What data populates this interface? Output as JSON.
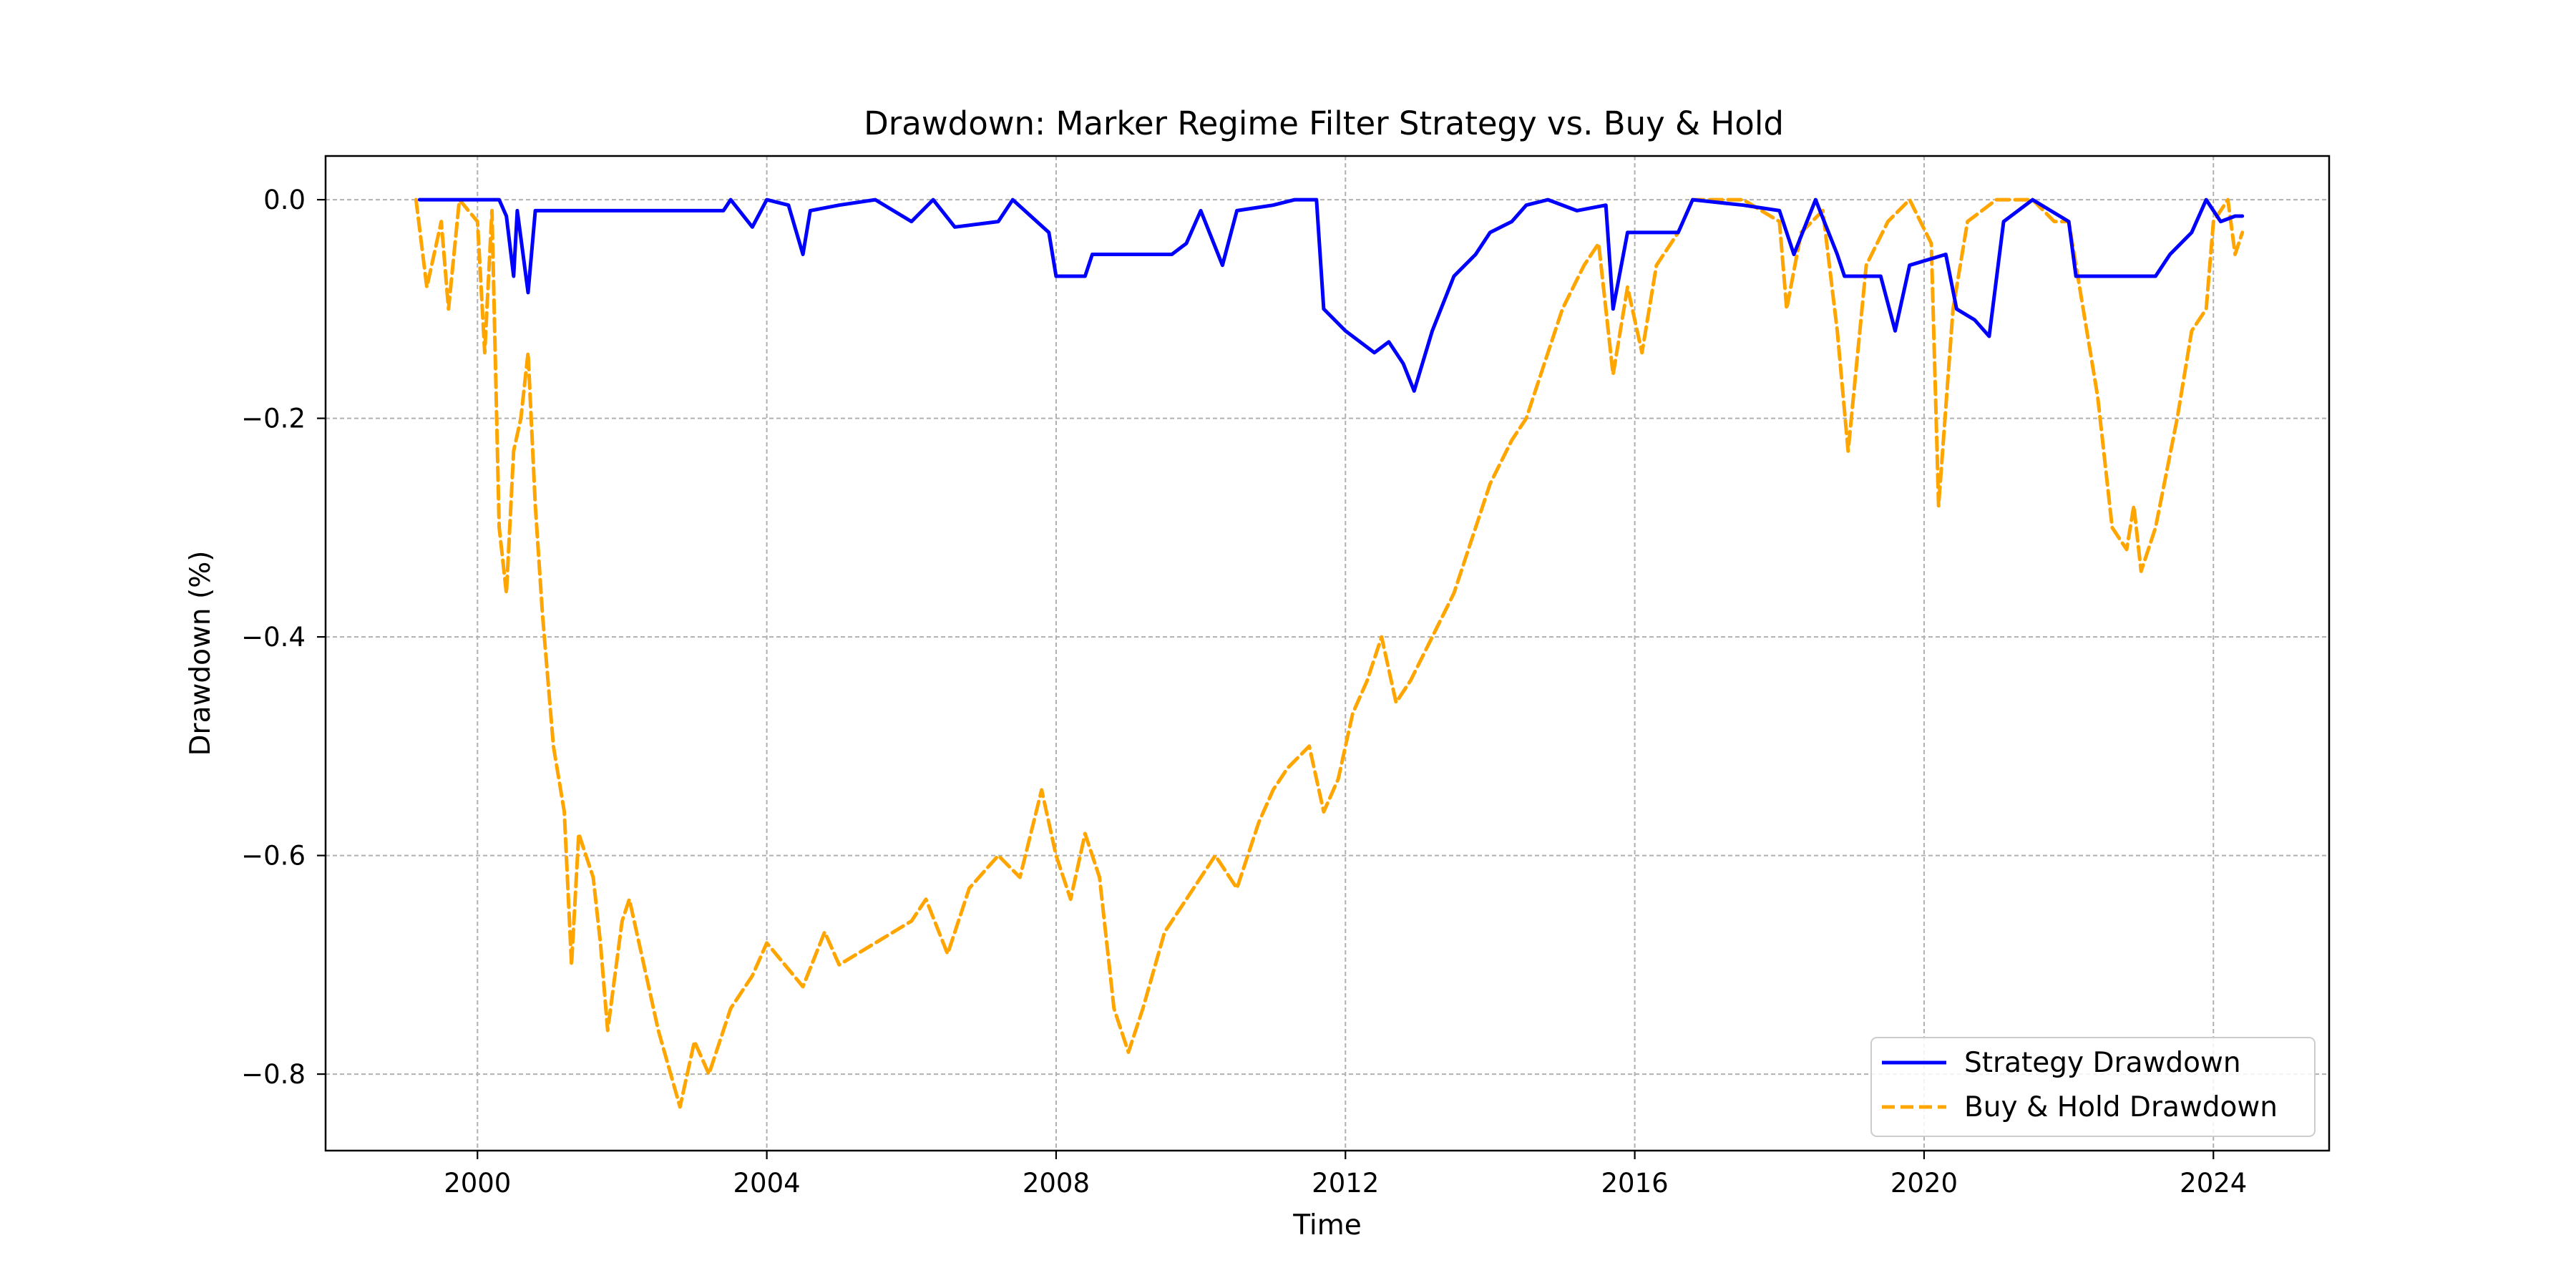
{
  "chart_data": {
    "type": "line",
    "title": "Drawdown: Marker Regime Filter Strategy vs. Buy & Hold",
    "xlabel": "Time",
    "ylabel": "Drawdown (%)",
    "xlim": [
      1997.9,
      2025.6
    ],
    "ylim": [
      -0.87,
      0.04
    ],
    "xticks": [
      2000,
      2004,
      2008,
      2012,
      2016,
      2020,
      2024
    ],
    "xtick_labels": [
      "2000",
      "2004",
      "2008",
      "2012",
      "2016",
      "2020",
      "2024"
    ],
    "yticks": [
      0.0,
      -0.2,
      -0.4,
      -0.6,
      -0.8
    ],
    "ytick_labels": [
      "0.0",
      "−0.2",
      "−0.4",
      "−0.6",
      "−0.8"
    ],
    "grid": true,
    "legend_position": "bottom-right",
    "series": [
      {
        "name": "Strategy Drawdown",
        "color": "#0000ff",
        "line_style": "solid",
        "points": [
          [
            1999.2,
            0.0
          ],
          [
            2000.3,
            0.0
          ],
          [
            2000.4,
            -0.015
          ],
          [
            2000.5,
            -0.07
          ],
          [
            2000.55,
            -0.01
          ],
          [
            2000.7,
            -0.085
          ],
          [
            2000.8,
            -0.01
          ],
          [
            2003.4,
            -0.01
          ],
          [
            2003.5,
            0.0
          ],
          [
            2003.8,
            -0.025
          ],
          [
            2004.0,
            0.0
          ],
          [
            2004.3,
            -0.005
          ],
          [
            2004.5,
            -0.05
          ],
          [
            2004.6,
            -0.01
          ],
          [
            2005.0,
            -0.005
          ],
          [
            2005.5,
            0.0
          ],
          [
            2006.0,
            -0.02
          ],
          [
            2006.3,
            0.0
          ],
          [
            2006.6,
            -0.025
          ],
          [
            2007.2,
            -0.02
          ],
          [
            2007.4,
            0.0
          ],
          [
            2007.9,
            -0.03
          ],
          [
            2008.0,
            -0.07
          ],
          [
            2008.4,
            -0.07
          ],
          [
            2008.5,
            -0.05
          ],
          [
            2009.6,
            -0.05
          ],
          [
            2009.8,
            -0.04
          ],
          [
            2010.0,
            -0.01
          ],
          [
            2010.3,
            -0.06
          ],
          [
            2010.5,
            -0.01
          ],
          [
            2011.0,
            -0.005
          ],
          [
            2011.3,
            0.0
          ],
          [
            2011.6,
            0.0
          ],
          [
            2011.7,
            -0.1
          ],
          [
            2012.0,
            -0.12
          ],
          [
            2012.4,
            -0.14
          ],
          [
            2012.6,
            -0.13
          ],
          [
            2012.8,
            -0.15
          ],
          [
            2012.95,
            -0.175
          ],
          [
            2013.2,
            -0.12
          ],
          [
            2013.5,
            -0.07
          ],
          [
            2013.8,
            -0.05
          ],
          [
            2014.0,
            -0.03
          ],
          [
            2014.3,
            -0.02
          ],
          [
            2014.5,
            -0.005
          ],
          [
            2014.8,
            0.0
          ],
          [
            2015.2,
            -0.01
          ],
          [
            2015.6,
            -0.005
          ],
          [
            2015.7,
            -0.1
          ],
          [
            2015.9,
            -0.03
          ],
          [
            2016.2,
            -0.03
          ],
          [
            2016.6,
            -0.03
          ],
          [
            2016.8,
            0.0
          ],
          [
            2017.5,
            -0.005
          ],
          [
            2018.0,
            -0.01
          ],
          [
            2018.2,
            -0.05
          ],
          [
            2018.5,
            0.0
          ],
          [
            2018.8,
            -0.05
          ],
          [
            2018.9,
            -0.07
          ],
          [
            2019.4,
            -0.07
          ],
          [
            2019.6,
            -0.12
          ],
          [
            2019.8,
            -0.06
          ],
          [
            2020.3,
            -0.05
          ],
          [
            2020.45,
            -0.1
          ],
          [
            2020.7,
            -0.11
          ],
          [
            2020.9,
            -0.125
          ],
          [
            2021.1,
            -0.02
          ],
          [
            2021.5,
            0.0
          ],
          [
            2022.0,
            -0.02
          ],
          [
            2022.1,
            -0.07
          ],
          [
            2023.2,
            -0.07
          ],
          [
            2023.4,
            -0.05
          ],
          [
            2023.7,
            -0.03
          ],
          [
            2023.9,
            0.0
          ],
          [
            2024.1,
            -0.02
          ],
          [
            2024.3,
            -0.015
          ],
          [
            2024.4,
            -0.015
          ]
        ]
      },
      {
        "name": "Buy & Hold Drawdown",
        "color": "#ffa500",
        "line_style": "dashed",
        "points": [
          [
            1999.15,
            0.0
          ],
          [
            1999.3,
            -0.08
          ],
          [
            1999.5,
            -0.02
          ],
          [
            1999.6,
            -0.1
          ],
          [
            1999.75,
            0.0
          ],
          [
            2000.0,
            -0.02
          ],
          [
            2000.1,
            -0.14
          ],
          [
            2000.2,
            -0.01
          ],
          [
            2000.3,
            -0.3
          ],
          [
            2000.4,
            -0.36
          ],
          [
            2000.5,
            -0.23
          ],
          [
            2000.6,
            -0.2
          ],
          [
            2000.7,
            -0.14
          ],
          [
            2000.8,
            -0.28
          ],
          [
            2000.9,
            -0.38
          ],
          [
            2001.05,
            -0.5
          ],
          [
            2001.2,
            -0.56
          ],
          [
            2001.3,
            -0.7
          ],
          [
            2001.4,
            -0.58
          ],
          [
            2001.6,
            -0.62
          ],
          [
            2001.7,
            -0.68
          ],
          [
            2001.8,
            -0.76
          ],
          [
            2002.0,
            -0.66
          ],
          [
            2002.1,
            -0.64
          ],
          [
            2002.3,
            -0.7
          ],
          [
            2002.5,
            -0.76
          ],
          [
            2002.8,
            -0.83
          ],
          [
            2003.0,
            -0.77
          ],
          [
            2003.2,
            -0.8
          ],
          [
            2003.5,
            -0.74
          ],
          [
            2003.8,
            -0.71
          ],
          [
            2004.0,
            -0.68
          ],
          [
            2004.5,
            -0.72
          ],
          [
            2004.8,
            -0.67
          ],
          [
            2005.0,
            -0.7
          ],
          [
            2005.5,
            -0.68
          ],
          [
            2006.0,
            -0.66
          ],
          [
            2006.2,
            -0.64
          ],
          [
            2006.5,
            -0.69
          ],
          [
            2006.8,
            -0.63
          ],
          [
            2007.2,
            -0.6
          ],
          [
            2007.5,
            -0.62
          ],
          [
            2007.8,
            -0.54
          ],
          [
            2008.0,
            -0.6
          ],
          [
            2008.2,
            -0.64
          ],
          [
            2008.4,
            -0.58
          ],
          [
            2008.6,
            -0.62
          ],
          [
            2008.8,
            -0.74
          ],
          [
            2009.0,
            -0.78
          ],
          [
            2009.2,
            -0.74
          ],
          [
            2009.5,
            -0.67
          ],
          [
            2009.8,
            -0.64
          ],
          [
            2010.0,
            -0.62
          ],
          [
            2010.2,
            -0.6
          ],
          [
            2010.5,
            -0.63
          ],
          [
            2010.8,
            -0.57
          ],
          [
            2011.0,
            -0.54
          ],
          [
            2011.2,
            -0.52
          ],
          [
            2011.5,
            -0.5
          ],
          [
            2011.7,
            -0.56
          ],
          [
            2011.9,
            -0.53
          ],
          [
            2012.1,
            -0.47
          ],
          [
            2012.3,
            -0.44
          ],
          [
            2012.5,
            -0.4
          ],
          [
            2012.7,
            -0.46
          ],
          [
            2012.9,
            -0.44
          ],
          [
            2013.2,
            -0.4
          ],
          [
            2013.5,
            -0.36
          ],
          [
            2013.8,
            -0.3
          ],
          [
            2014.0,
            -0.26
          ],
          [
            2014.3,
            -0.22
          ],
          [
            2014.5,
            -0.2
          ],
          [
            2014.8,
            -0.14
          ],
          [
            2015.0,
            -0.1
          ],
          [
            2015.3,
            -0.06
          ],
          [
            2015.5,
            -0.04
          ],
          [
            2015.7,
            -0.16
          ],
          [
            2015.9,
            -0.08
          ],
          [
            2016.1,
            -0.14
          ],
          [
            2016.3,
            -0.06
          ],
          [
            2016.6,
            -0.03
          ],
          [
            2016.8,
            0.0
          ],
          [
            2017.5,
            0.0
          ],
          [
            2018.0,
            -0.02
          ],
          [
            2018.1,
            -0.1
          ],
          [
            2018.3,
            -0.03
          ],
          [
            2018.6,
            -0.01
          ],
          [
            2018.8,
            -0.12
          ],
          [
            2018.95,
            -0.23
          ],
          [
            2019.2,
            -0.06
          ],
          [
            2019.5,
            -0.02
          ],
          [
            2019.8,
            0.0
          ],
          [
            2020.1,
            -0.04
          ],
          [
            2020.2,
            -0.28
          ],
          [
            2020.4,
            -0.1
          ],
          [
            2020.6,
            -0.02
          ],
          [
            2020.8,
            -0.01
          ],
          [
            2021.0,
            0.0
          ],
          [
            2021.5,
            0.0
          ],
          [
            2021.8,
            -0.02
          ],
          [
            2022.0,
            -0.02
          ],
          [
            2022.2,
            -0.1
          ],
          [
            2022.4,
            -0.18
          ],
          [
            2022.6,
            -0.3
          ],
          [
            2022.8,
            -0.32
          ],
          [
            2022.9,
            -0.28
          ],
          [
            2023.0,
            -0.34
          ],
          [
            2023.2,
            -0.3
          ],
          [
            2023.5,
            -0.2
          ],
          [
            2023.7,
            -0.12
          ],
          [
            2023.9,
            -0.1
          ],
          [
            2024.0,
            -0.02
          ],
          [
            2024.2,
            0.0
          ],
          [
            2024.3,
            -0.05
          ],
          [
            2024.4,
            -0.03
          ]
        ]
      }
    ]
  }
}
